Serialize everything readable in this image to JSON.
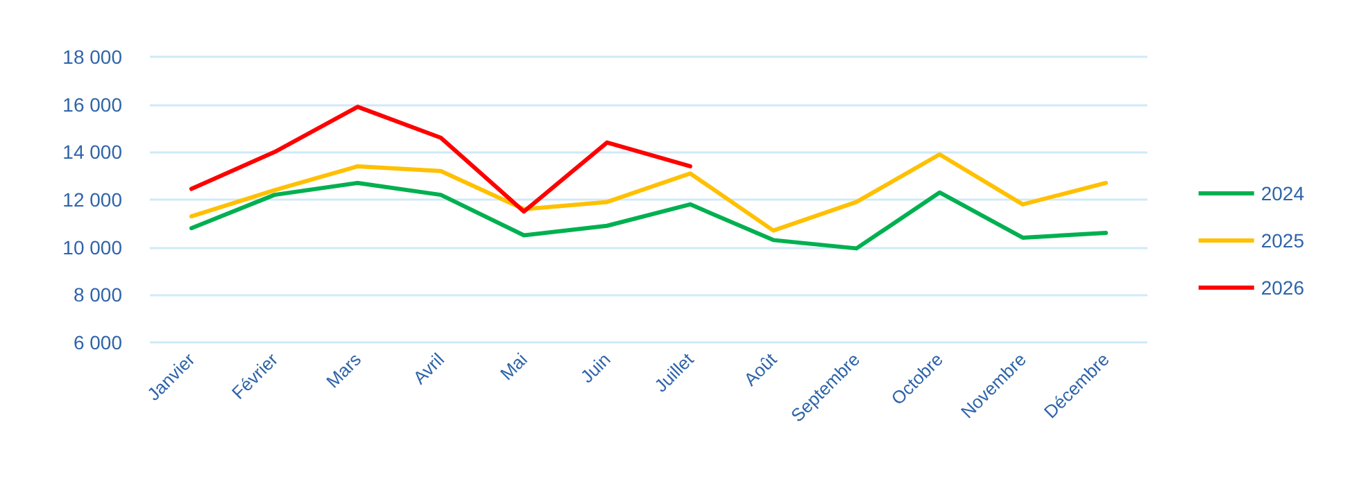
{
  "chart_data": {
    "type": "line",
    "categories": [
      "Janvier",
      "Février",
      "Mars",
      "Avril",
      "Mai",
      "Juin",
      "Juillet",
      "Août",
      "Septembre",
      "Octobre",
      "Novembre",
      "Décembre"
    ],
    "series": [
      {
        "name": "2024",
        "color": "#00b050",
        "values": [
          10800,
          12200,
          12700,
          12200,
          10500,
          10900,
          11800,
          10300,
          9950,
          12300,
          10400,
          10600
        ]
      },
      {
        "name": "2025",
        "color": "#ffc000",
        "values": [
          11300,
          12400,
          13400,
          13200,
          11600,
          11900,
          13100,
          10700,
          11900,
          13900,
          11800,
          12700
        ]
      },
      {
        "name": "2026",
        "color": "#ff0000",
        "values": [
          12450,
          14000,
          15900,
          14600,
          11500,
          14400,
          13400,
          null,
          null,
          null,
          null,
          null
        ]
      }
    ],
    "ylim": [
      6000,
      18000
    ],
    "yticks": [
      6000,
      8000,
      10000,
      12000,
      14000,
      16000,
      18000
    ],
    "grid": "y",
    "legend": "right",
    "marker": "none",
    "line_style": "solid"
  }
}
